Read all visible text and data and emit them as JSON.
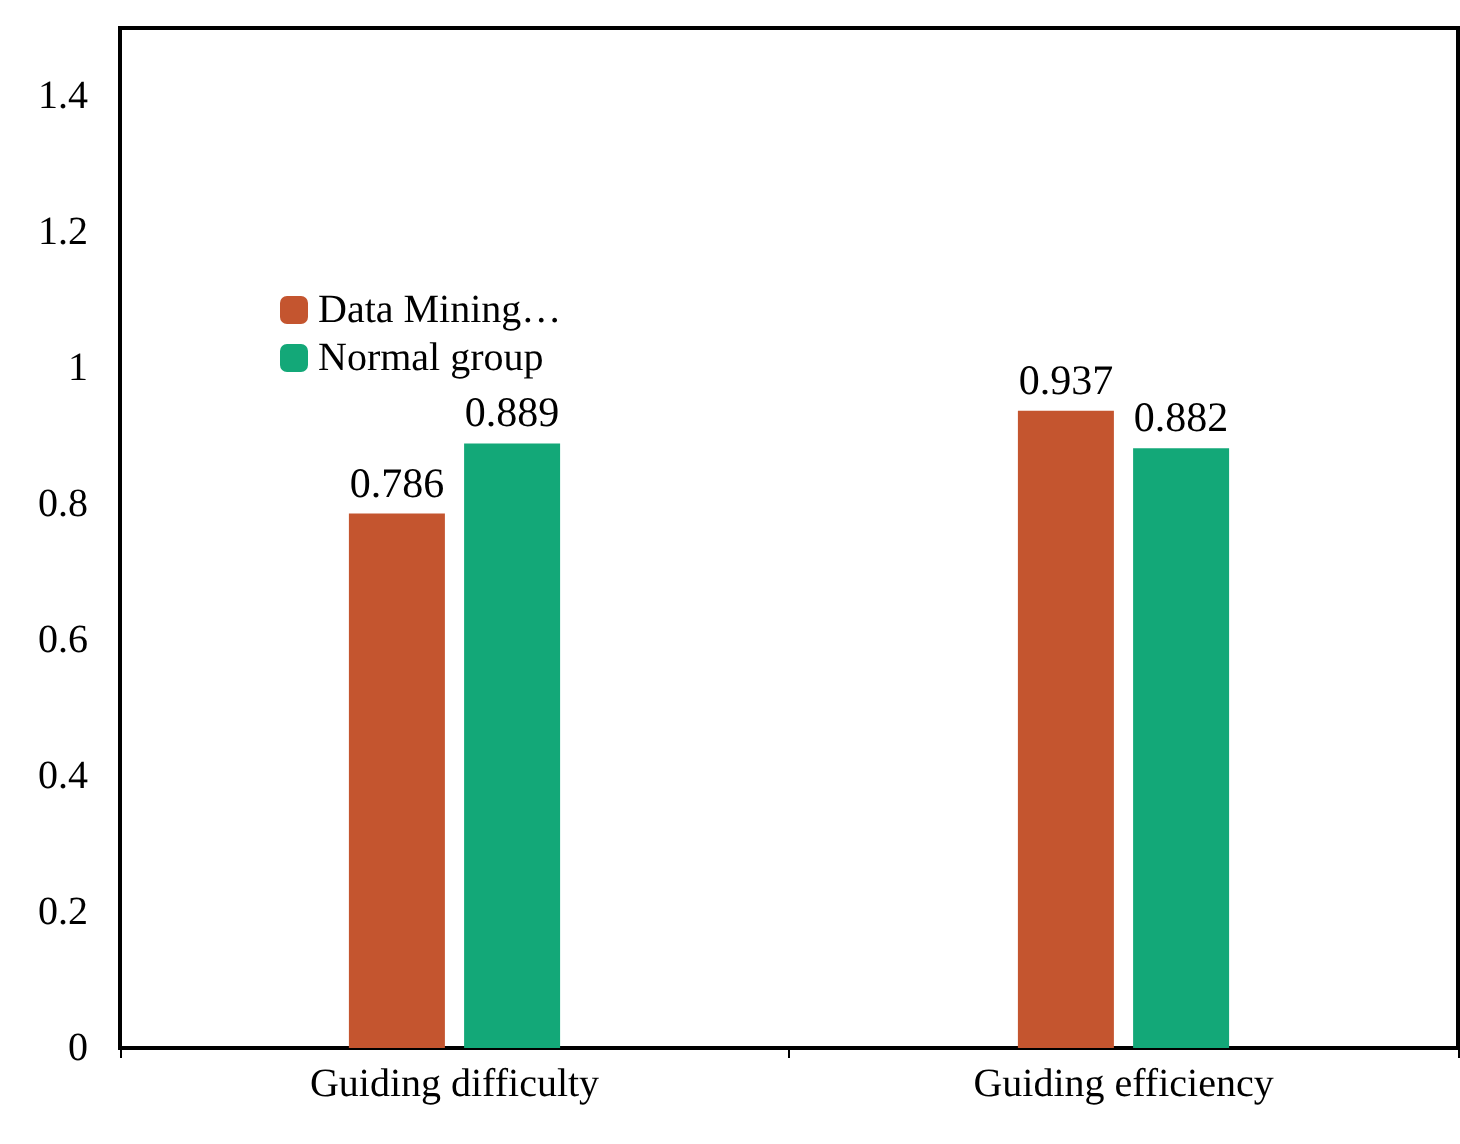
{
  "chart_data": {
    "type": "bar",
    "categories": [
      "Guiding difficulty",
      "Guiding efficiency"
    ],
    "series": [
      {
        "name": "Data Mining…",
        "color": "#c4552f",
        "values": [
          0.786,
          0.937
        ]
      },
      {
        "name": "Normal group",
        "color": "#13a878",
        "values": [
          0.889,
          0.882
        ]
      }
    ],
    "ylim": [
      0,
      1.5
    ],
    "yticks": [
      0,
      0.2,
      0.4,
      0.6,
      0.8,
      1,
      1.2,
      1.4
    ],
    "grid": false,
    "legend": "top left",
    "data_labels": true
  }
}
